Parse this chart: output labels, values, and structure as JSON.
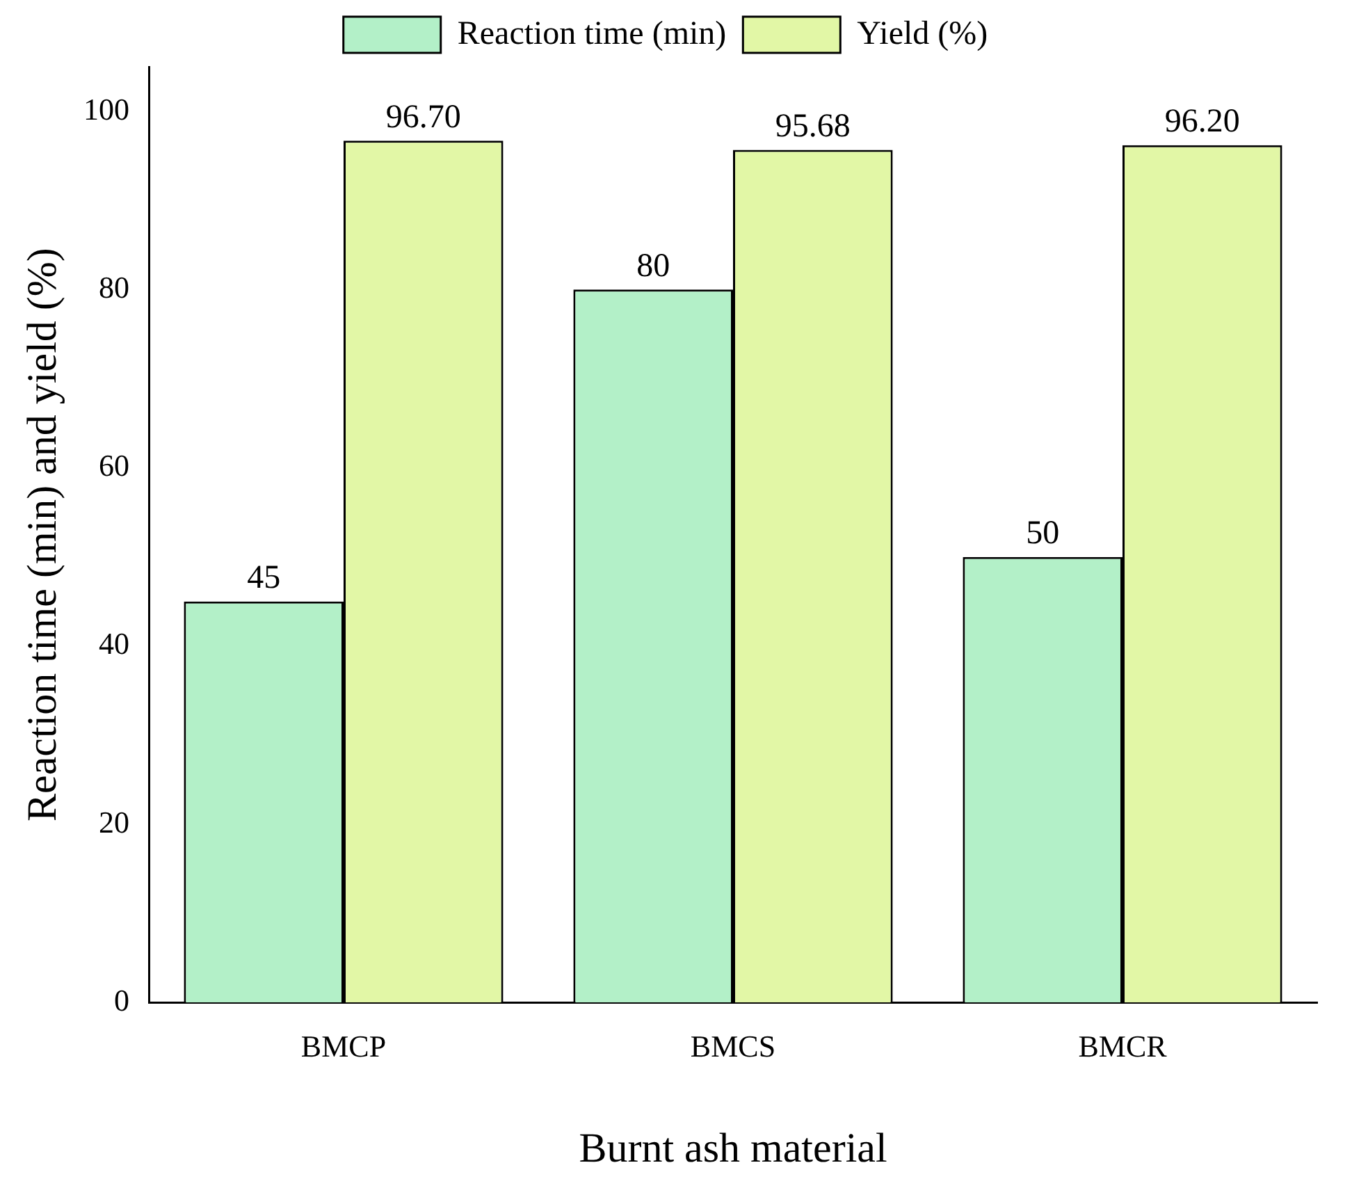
{
  "chart_data": {
    "type": "bar",
    "xlabel": "Burnt ash material",
    "ylabel": "Reaction time (min) and yield (%)",
    "categories": [
      "BMCP",
      "BMCS",
      "BMCR"
    ],
    "series": [
      {
        "name": "Reaction time (min)",
        "color": "#b3f0c8",
        "values": [
          45,
          80,
          50
        ],
        "value_labels": [
          "45",
          "80",
          "50"
        ]
      },
      {
        "name": "Yield (%)",
        "color": "#e2f7a6",
        "values": [
          96.7,
          95.68,
          96.2
        ],
        "value_labels": [
          "96.70",
          "95.68",
          "96.20"
        ]
      }
    ],
    "ylim": [
      0,
      105
    ],
    "yticks": [
      0,
      20,
      40,
      60,
      80,
      100
    ],
    "grid": false,
    "legend": "top"
  }
}
